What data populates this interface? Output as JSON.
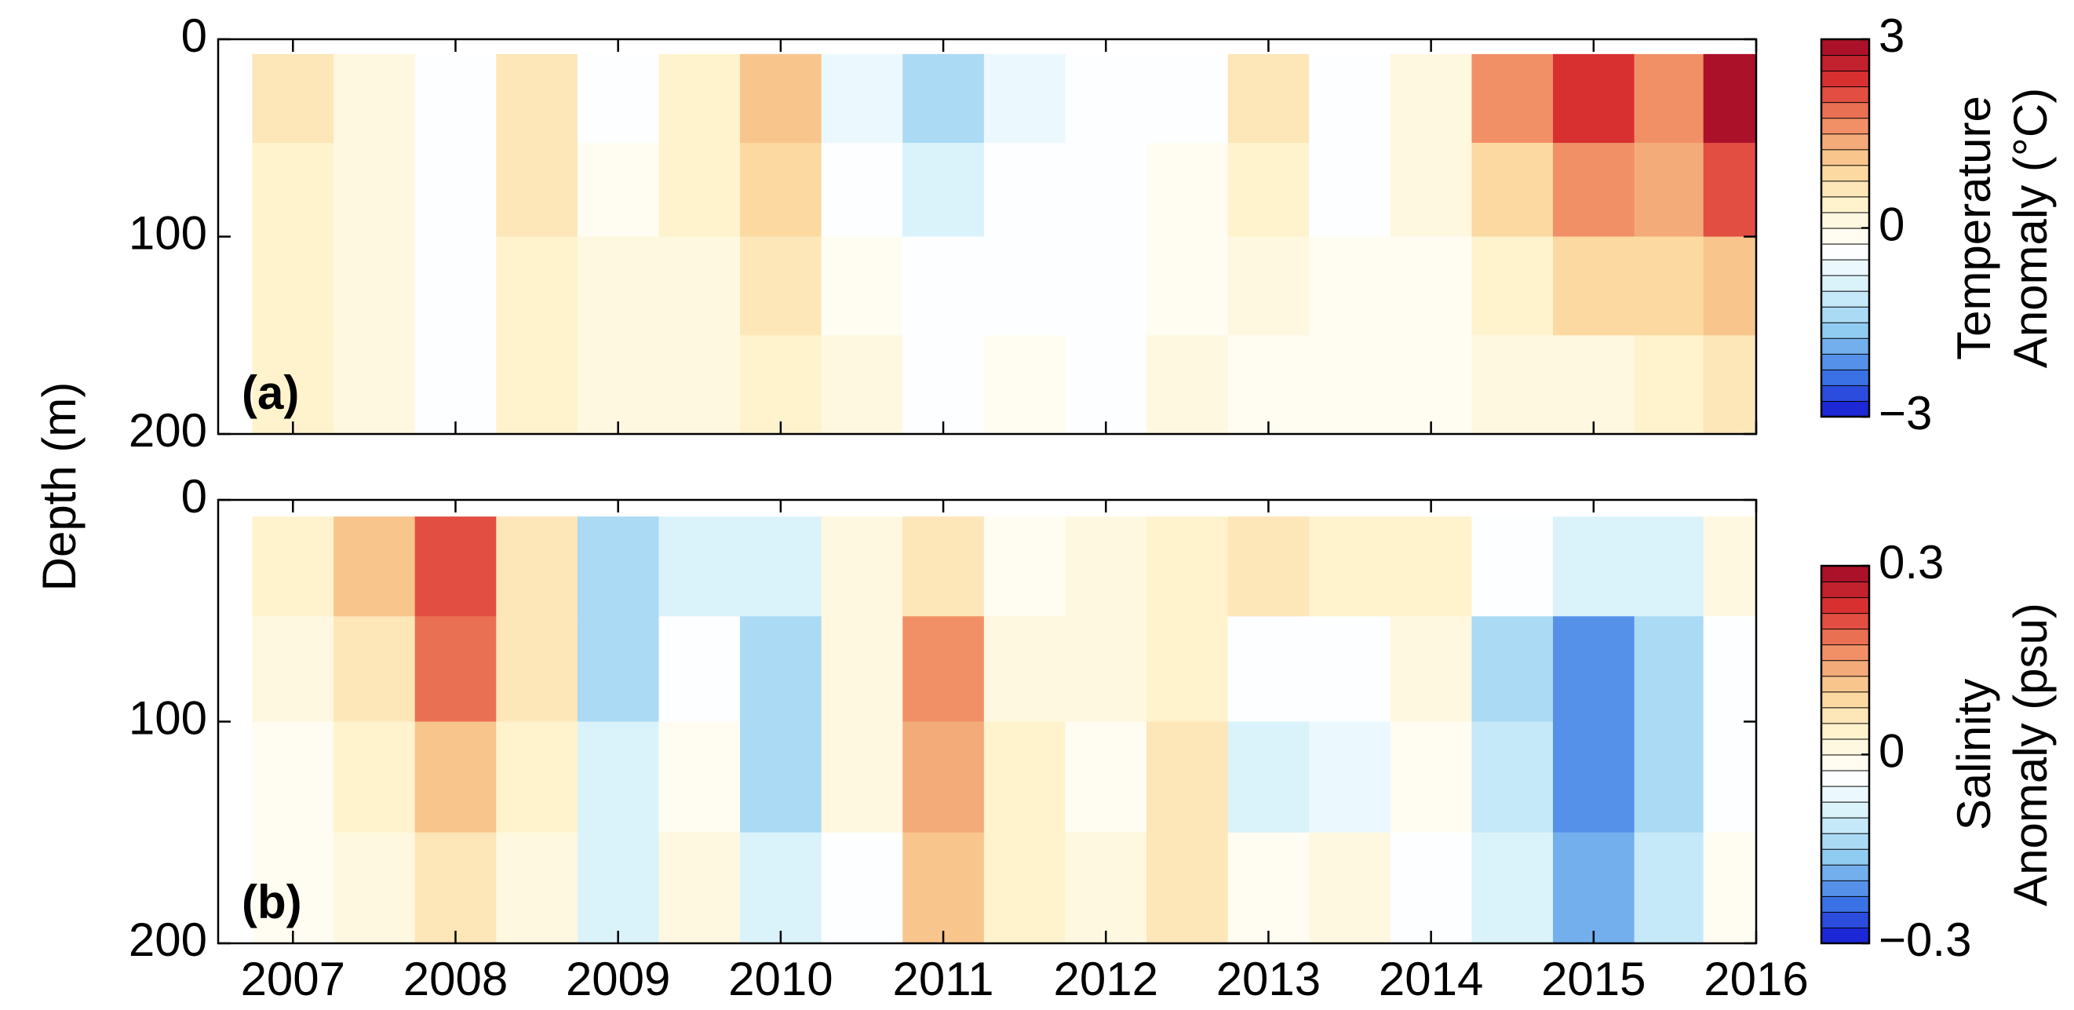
{
  "chart_data": [
    {
      "type": "heatmap",
      "panel_label": "(a)",
      "ylabel": "Depth (m)",
      "x": [
        2007.0,
        2007.5,
        2008.0,
        2008.5,
        2009.0,
        2009.5,
        2010.0,
        2010.5,
        2011.0,
        2011.5,
        2012.0,
        2012.5,
        2013.0,
        2013.5,
        2014.0,
        2014.5,
        2015.0,
        2015.5,
        2015.85
      ],
      "y": [
        30,
        75,
        125,
        175
      ],
      "values": [
        [
          0.5,
          0.2,
          -0.4,
          0.6,
          -0.3,
          0.3,
          1.2,
          -0.6,
          -1.5,
          -0.6,
          -0.4,
          -0.3,
          0.6,
          -0.3,
          0.2,
          1.5,
          2.3,
          1.6,
          2.8
        ],
        [
          0.4,
          0.2,
          -0.3,
          0.6,
          -0.2,
          0.3,
          0.8,
          -0.4,
          -0.9,
          -0.5,
          -0.3,
          -0.2,
          0.3,
          -0.3,
          0.1,
          0.8,
          1.5,
          1.4,
          2.2
        ],
        [
          0.3,
          0.1,
          -0.3,
          0.3,
          0.1,
          0.2,
          0.5,
          -0.2,
          -0.5,
          -0.3,
          -0.3,
          -0.2,
          0.1,
          -0.2,
          -0.1,
          0.3,
          0.8,
          0.8,
          1.0
        ],
        [
          0.3,
          0.0,
          -0.3,
          0.3,
          0.1,
          0.2,
          0.3,
          0.1,
          -0.3,
          -0.2,
          -0.4,
          0.2,
          -0.2,
          -0.2,
          -0.2,
          0.1,
          0.2,
          0.4,
          0.5
        ]
      ],
      "xlim": [
        2006.54,
        2016
      ],
      "xticks": [
        2007,
        2008,
        2009,
        2010,
        2011,
        2012,
        2013,
        2014,
        2015,
        2016
      ],
      "ylim": [
        200,
        0
      ],
      "yticks": [
        0,
        100,
        200
      ],
      "colorbar": {
        "label": [
          "Temperature",
          "Anomaly (°C)"
        ],
        "clim": [
          -3,
          3
        ],
        "levels": 24,
        "ticks": [
          {
            "value": -3,
            "label": "−3"
          },
          0,
          3
        ]
      },
      "colormap": [
        "#1414d2",
        "#3c78e6",
        "#8cc8f0",
        "#d2f0fa",
        "#ffffff",
        "#fff5d2",
        "#fad296",
        "#f08c64",
        "#dc3232",
        "#a00a28"
      ]
    },
    {
      "type": "heatmap",
      "panel_label": "(b)",
      "x": [
        2007.0,
        2007.5,
        2008.0,
        2008.5,
        2009.0,
        2009.5,
        2010.0,
        2010.5,
        2011.0,
        2011.5,
        2012.0,
        2012.5,
        2013.0,
        2013.5,
        2014.0,
        2014.5,
        2015.0,
        2015.5,
        2015.85
      ],
      "y": [
        30,
        75,
        125,
        175
      ],
      "values": [
        [
          0.03,
          0.1,
          0.2,
          0.05,
          -0.15,
          -0.08,
          -0.1,
          0.0,
          0.05,
          -0.02,
          0.02,
          0.03,
          0.06,
          0.03,
          0.04,
          -0.05,
          -0.08,
          -0.1,
          0.0
        ],
        [
          0.0,
          0.06,
          0.18,
          0.05,
          -0.15,
          -0.05,
          -0.15,
          0.02,
          0.15,
          0.02,
          0.0,
          0.03,
          -0.05,
          -0.05,
          0.0,
          -0.13,
          -0.2,
          -0.15,
          -0.05
        ],
        [
          -0.02,
          0.03,
          0.1,
          0.03,
          -0.1,
          -0.02,
          -0.13,
          0.0,
          0.13,
          0.03,
          -0.02,
          0.06,
          -0.08,
          -0.06,
          -0.02,
          -0.12,
          -0.2,
          -0.13,
          -0.04
        ],
        [
          -0.02,
          0.02,
          0.06,
          0.02,
          -0.08,
          0.0,
          -0.08,
          -0.05,
          0.1,
          0.03,
          0.0,
          0.07,
          -0.02,
          0.02,
          -0.03,
          -0.1,
          -0.18,
          -0.12,
          -0.02
        ]
      ],
      "xlim": [
        2006.54,
        2016
      ],
      "xticks": [
        2007,
        2008,
        2009,
        2010,
        2011,
        2012,
        2013,
        2014,
        2015,
        2016
      ],
      "ylim": [
        200,
        0
      ],
      "yticks": [
        0,
        100,
        200
      ],
      "colorbar": {
        "label": [
          "Salinity",
          "Anomaly (psu)"
        ],
        "clim": [
          -0.3,
          0.3
        ],
        "levels": 24,
        "ticks": [
          {
            "value": -0.3,
            "label": "−0.3"
          },
          0,
          0.3
        ]
      },
      "colormap": [
        "#1414d2",
        "#3c78e6",
        "#8cc8f0",
        "#d2f0fa",
        "#ffffff",
        "#fff5d2",
        "#fad296",
        "#f08c64",
        "#dc3232",
        "#a00a28"
      ]
    }
  ]
}
